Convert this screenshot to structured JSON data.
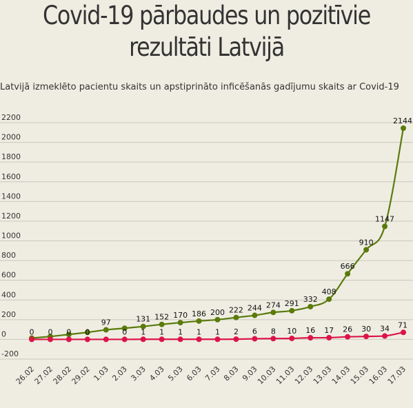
{
  "header": {
    "title_line1": "Covid-19 pārbaudes un pozitīvie",
    "title_line2": "rezultāti Latvijā",
    "subtitle": "Latvijā izmeklēto pacientu skaits un apstiprināto inficēšanās gadījumu skaits ar Covid-19"
  },
  "chart_data": {
    "type": "line",
    "title": "Covid-19 pārbaudes un pozitīvie rezultāti Latvijā",
    "subtitle": "Latvijā izmeklēto pacientu skaits un apstiprināto inficēšanās gadījumu skaits ar Covid-19",
    "categories": [
      "26.02",
      "27.02",
      "28.02",
      "29.02",
      "1.03",
      "2.03",
      "3.03",
      "4.03",
      "5.03",
      "6.03",
      "7.03",
      "8.03",
      "9.03",
      "10.03",
      "11.03",
      "12.03",
      "13.03",
      "14.03",
      "15.03",
      "16.03",
      "17.03"
    ],
    "ylim": [
      -200,
      2200
    ],
    "yticks": [
      -200,
      0,
      200,
      400,
      600,
      800,
      1000,
      1200,
      1400,
      1600,
      1800,
      2000,
      2200
    ],
    "grid": true,
    "legend": "none",
    "series": [
      {
        "color": "#5a7a0b",
        "values": [
          13,
          29,
          50,
          71,
          97,
          113,
          131,
          152,
          170,
          186,
          200,
          222,
          244,
          274,
          291,
          332,
          408,
          666,
          910,
          1147,
          2144
        ],
        "labels": [
          "",
          "",
          "",
          "",
          "97",
          "",
          "131",
          "152",
          "170",
          "186",
          "200",
          "222",
          "244",
          "274",
          "291",
          "332",
          "408",
          "666",
          "910",
          "1147",
          "2144"
        ]
      },
      {
        "color": "#dc1448",
        "values": [
          0,
          0,
          0,
          0,
          0,
          0,
          1,
          1,
          1,
          1,
          1,
          2,
          6,
          8,
          10,
          16,
          17,
          26,
          30,
          34,
          71
        ],
        "labels": [
          "0",
          "0",
          "0",
          "0",
          "",
          "0",
          "1",
          "1",
          "1",
          "1",
          "1",
          "2",
          "6",
          "8",
          "10",
          "16",
          "17",
          "26",
          "30",
          "34",
          "71"
        ]
      }
    ]
  }
}
